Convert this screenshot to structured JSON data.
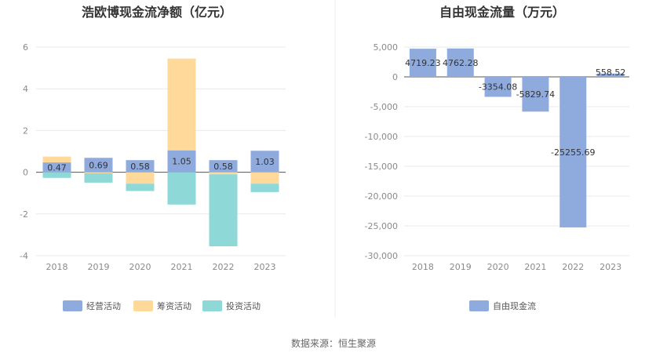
{
  "source": "数据来源：恒生聚源",
  "chart_data": [
    {
      "type": "bar",
      "stacked": true,
      "title": "浩欧博现金流净额（亿元）",
      "categories": [
        "2018",
        "2019",
        "2020",
        "2021",
        "2022",
        "2023"
      ],
      "series": [
        {
          "name": "经营活动",
          "color": "#8faadc",
          "values": [
            0.47,
            0.69,
            0.58,
            1.05,
            0.58,
            1.03
          ]
        },
        {
          "name": "筹资活动",
          "color": "#ffd99a",
          "values": [
            0.28,
            -0.05,
            -0.55,
            4.4,
            -0.1,
            -0.55
          ]
        },
        {
          "name": "投资活动",
          "color": "#8ed8d8",
          "values": [
            -0.27,
            -0.45,
            -0.35,
            -1.55,
            -3.45,
            -0.4
          ]
        }
      ],
      "data_labels": [
        "0.47",
        "0.69",
        "0.58",
        "1.05",
        "0.58",
        "1.03"
      ],
      "ylim": [
        -4,
        6
      ],
      "yticks": [
        -4,
        -2,
        0,
        2,
        4,
        6
      ],
      "grid": true,
      "legend": "bottom"
    },
    {
      "type": "bar",
      "title": "自由现金流量（万元）",
      "categories": [
        "2018",
        "2019",
        "2020",
        "2021",
        "2022",
        "2023"
      ],
      "series": [
        {
          "name": "自由现金流",
          "color": "#8faadc",
          "values": [
            4719.23,
            4762.28,
            -3354.08,
            -5829.74,
            -25255.69,
            558.52
          ]
        }
      ],
      "data_labels": [
        "4719.23",
        "4762.28",
        "-3354.08",
        "-5829.74",
        "-25255.69",
        "558.52"
      ],
      "ylim": [
        -30000,
        5000
      ],
      "yticks": [
        -30000,
        -25000,
        -20000,
        -15000,
        -10000,
        -5000,
        0,
        5000
      ],
      "ytick_labels": [
        "-30,000",
        "-25,000",
        "-20,000",
        "-15,000",
        "-10,000",
        "-5,000",
        "0",
        "5,000"
      ],
      "grid": true,
      "legend": "bottom"
    }
  ]
}
